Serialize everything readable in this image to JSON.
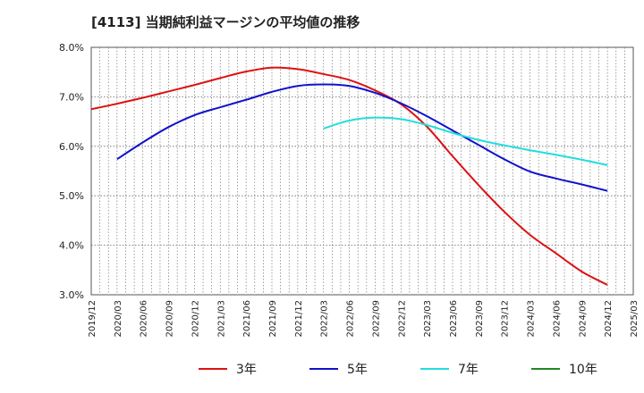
{
  "title": "[4113]  当期純利益マージンの平均値の推移",
  "chart_data": {
    "type": "line",
    "title": "[4113]  当期純利益マージンの平均値の推移",
    "xlabel": "",
    "ylabel": "",
    "ylim": [
      0.03,
      0.08
    ],
    "y_ticks": [
      "3.0%",
      "4.0%",
      "5.0%",
      "6.0%",
      "7.0%",
      "8.0%"
    ],
    "x_ticks": [
      "2019/12",
      "2020/03",
      "2020/06",
      "2020/09",
      "2020/12",
      "2021/03",
      "2021/06",
      "2021/09",
      "2021/12",
      "2022/03",
      "2022/06",
      "2022/09",
      "2022/12",
      "2023/03",
      "2023/06",
      "2023/09",
      "2023/12",
      "2024/03",
      "2024/06",
      "2024/09",
      "2024/12",
      "2025/03"
    ],
    "grid": true,
    "legend_position": "bottom",
    "series": [
      {
        "name": "3年",
        "color": "#dd1111",
        "points": [
          [
            "2019/12",
            0.0675
          ],
          [
            "2020/03",
            0.0686
          ],
          [
            "2020/06",
            0.0698
          ],
          [
            "2020/09",
            0.0711
          ],
          [
            "2020/12",
            0.0724
          ],
          [
            "2021/03",
            0.0738
          ],
          [
            "2021/06",
            0.0751
          ],
          [
            "2021/09",
            0.0759
          ],
          [
            "2021/12",
            0.0756
          ],
          [
            "2022/03",
            0.0746
          ],
          [
            "2022/06",
            0.0734
          ],
          [
            "2022/09",
            0.0713
          ],
          [
            "2022/12",
            0.0685
          ],
          [
            "2023/03",
            0.064
          ],
          [
            "2023/06",
            0.058
          ],
          [
            "2023/09",
            0.0522
          ],
          [
            "2023/12",
            0.0468
          ],
          [
            "2024/03",
            0.0421
          ],
          [
            "2024/06",
            0.0384
          ],
          [
            "2024/09",
            0.0347
          ],
          [
            "2024/12",
            0.032
          ]
        ]
      },
      {
        "name": "5年",
        "color": "#1111cc",
        "points": [
          [
            "2020/03",
            0.0574
          ],
          [
            "2020/06",
            0.0608
          ],
          [
            "2020/09",
            0.0639
          ],
          [
            "2020/12",
            0.0663
          ],
          [
            "2021/03",
            0.0679
          ],
          [
            "2021/06",
            0.0694
          ],
          [
            "2021/09",
            0.071
          ],
          [
            "2021/12",
            0.0722
          ],
          [
            "2022/03",
            0.0725
          ],
          [
            "2022/06",
            0.0722
          ],
          [
            "2022/09",
            0.0708
          ],
          [
            "2022/12",
            0.0687
          ],
          [
            "2023/03",
            0.0661
          ],
          [
            "2023/06",
            0.0632
          ],
          [
            "2023/09",
            0.0603
          ],
          [
            "2023/12",
            0.0574
          ],
          [
            "2024/03",
            0.0549
          ],
          [
            "2024/06",
            0.0535
          ],
          [
            "2024/09",
            0.0523
          ],
          [
            "2024/12",
            0.051
          ]
        ]
      },
      {
        "name": "7年",
        "color": "#22dddd",
        "points": [
          [
            "2022/03",
            0.0636
          ],
          [
            "2022/06",
            0.0652
          ],
          [
            "2022/09",
            0.0658
          ],
          [
            "2022/12",
            0.0655
          ],
          [
            "2023/03",
            0.0643
          ],
          [
            "2023/06",
            0.0627
          ],
          [
            "2023/09",
            0.0613
          ],
          [
            "2023/12",
            0.0602
          ],
          [
            "2024/03",
            0.0592
          ],
          [
            "2024/06",
            0.0583
          ],
          [
            "2024/09",
            0.0573
          ],
          [
            "2024/12",
            0.0562
          ]
        ]
      },
      {
        "name": "10年",
        "color": "#228822",
        "points": []
      }
    ]
  }
}
